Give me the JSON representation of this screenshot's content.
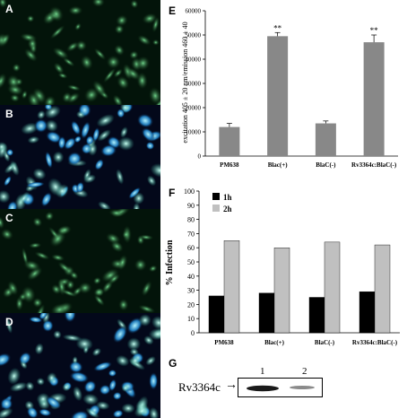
{
  "panels": {
    "micrographs": [
      {
        "letter": "A",
        "stain": "green"
      },
      {
        "letter": "B",
        "stain": "blue-green"
      },
      {
        "letter": "C",
        "stain": "green"
      },
      {
        "letter": "D",
        "stain": "blue-green"
      }
    ],
    "E_letter": "E",
    "F_letter": "F",
    "G_letter": "G"
  },
  "chart_data": [
    {
      "panel": "E",
      "type": "bar",
      "categories": [
        "PM638",
        "Blac(+)",
        "BlaC(-)",
        "Rv3364c:BlaC(-)"
      ],
      "values": [
        12000,
        49500,
        13500,
        47000
      ],
      "errors": [
        1500,
        1500,
        1000,
        3000
      ],
      "annotations": [
        "",
        "**",
        "",
        "**"
      ],
      "ylabel": "excitation 405 ± 20 nm/emission 460 ± 40",
      "ylim": [
        0,
        60000
      ],
      "yticks": [
        "0",
        "10000",
        "20000",
        "30000",
        "40000",
        "50000",
        "60000"
      ],
      "bar_color": "#888888"
    },
    {
      "panel": "F",
      "type": "bar",
      "categories": [
        "PM638",
        "Blac(+)",
        "BlaC(-)",
        "Rv3364c:BlaC(-)"
      ],
      "series": [
        {
          "name": "1h",
          "values": [
            26,
            28,
            25,
            29
          ],
          "color": "#000000"
        },
        {
          "name": "2h",
          "values": [
            65,
            60,
            64,
            62
          ],
          "color": "#c0c0c0"
        }
      ],
      "ylabel": "% Infection",
      "ylim": [
        0,
        100
      ],
      "yticks": [
        "0",
        "10",
        "20",
        "30",
        "40",
        "50",
        "60",
        "70",
        "80",
        "90",
        "100"
      ],
      "legend": "top-left"
    }
  ],
  "blot": {
    "label": "Rv3364c",
    "arrow": "→",
    "lanes": [
      "1",
      "2"
    ]
  }
}
